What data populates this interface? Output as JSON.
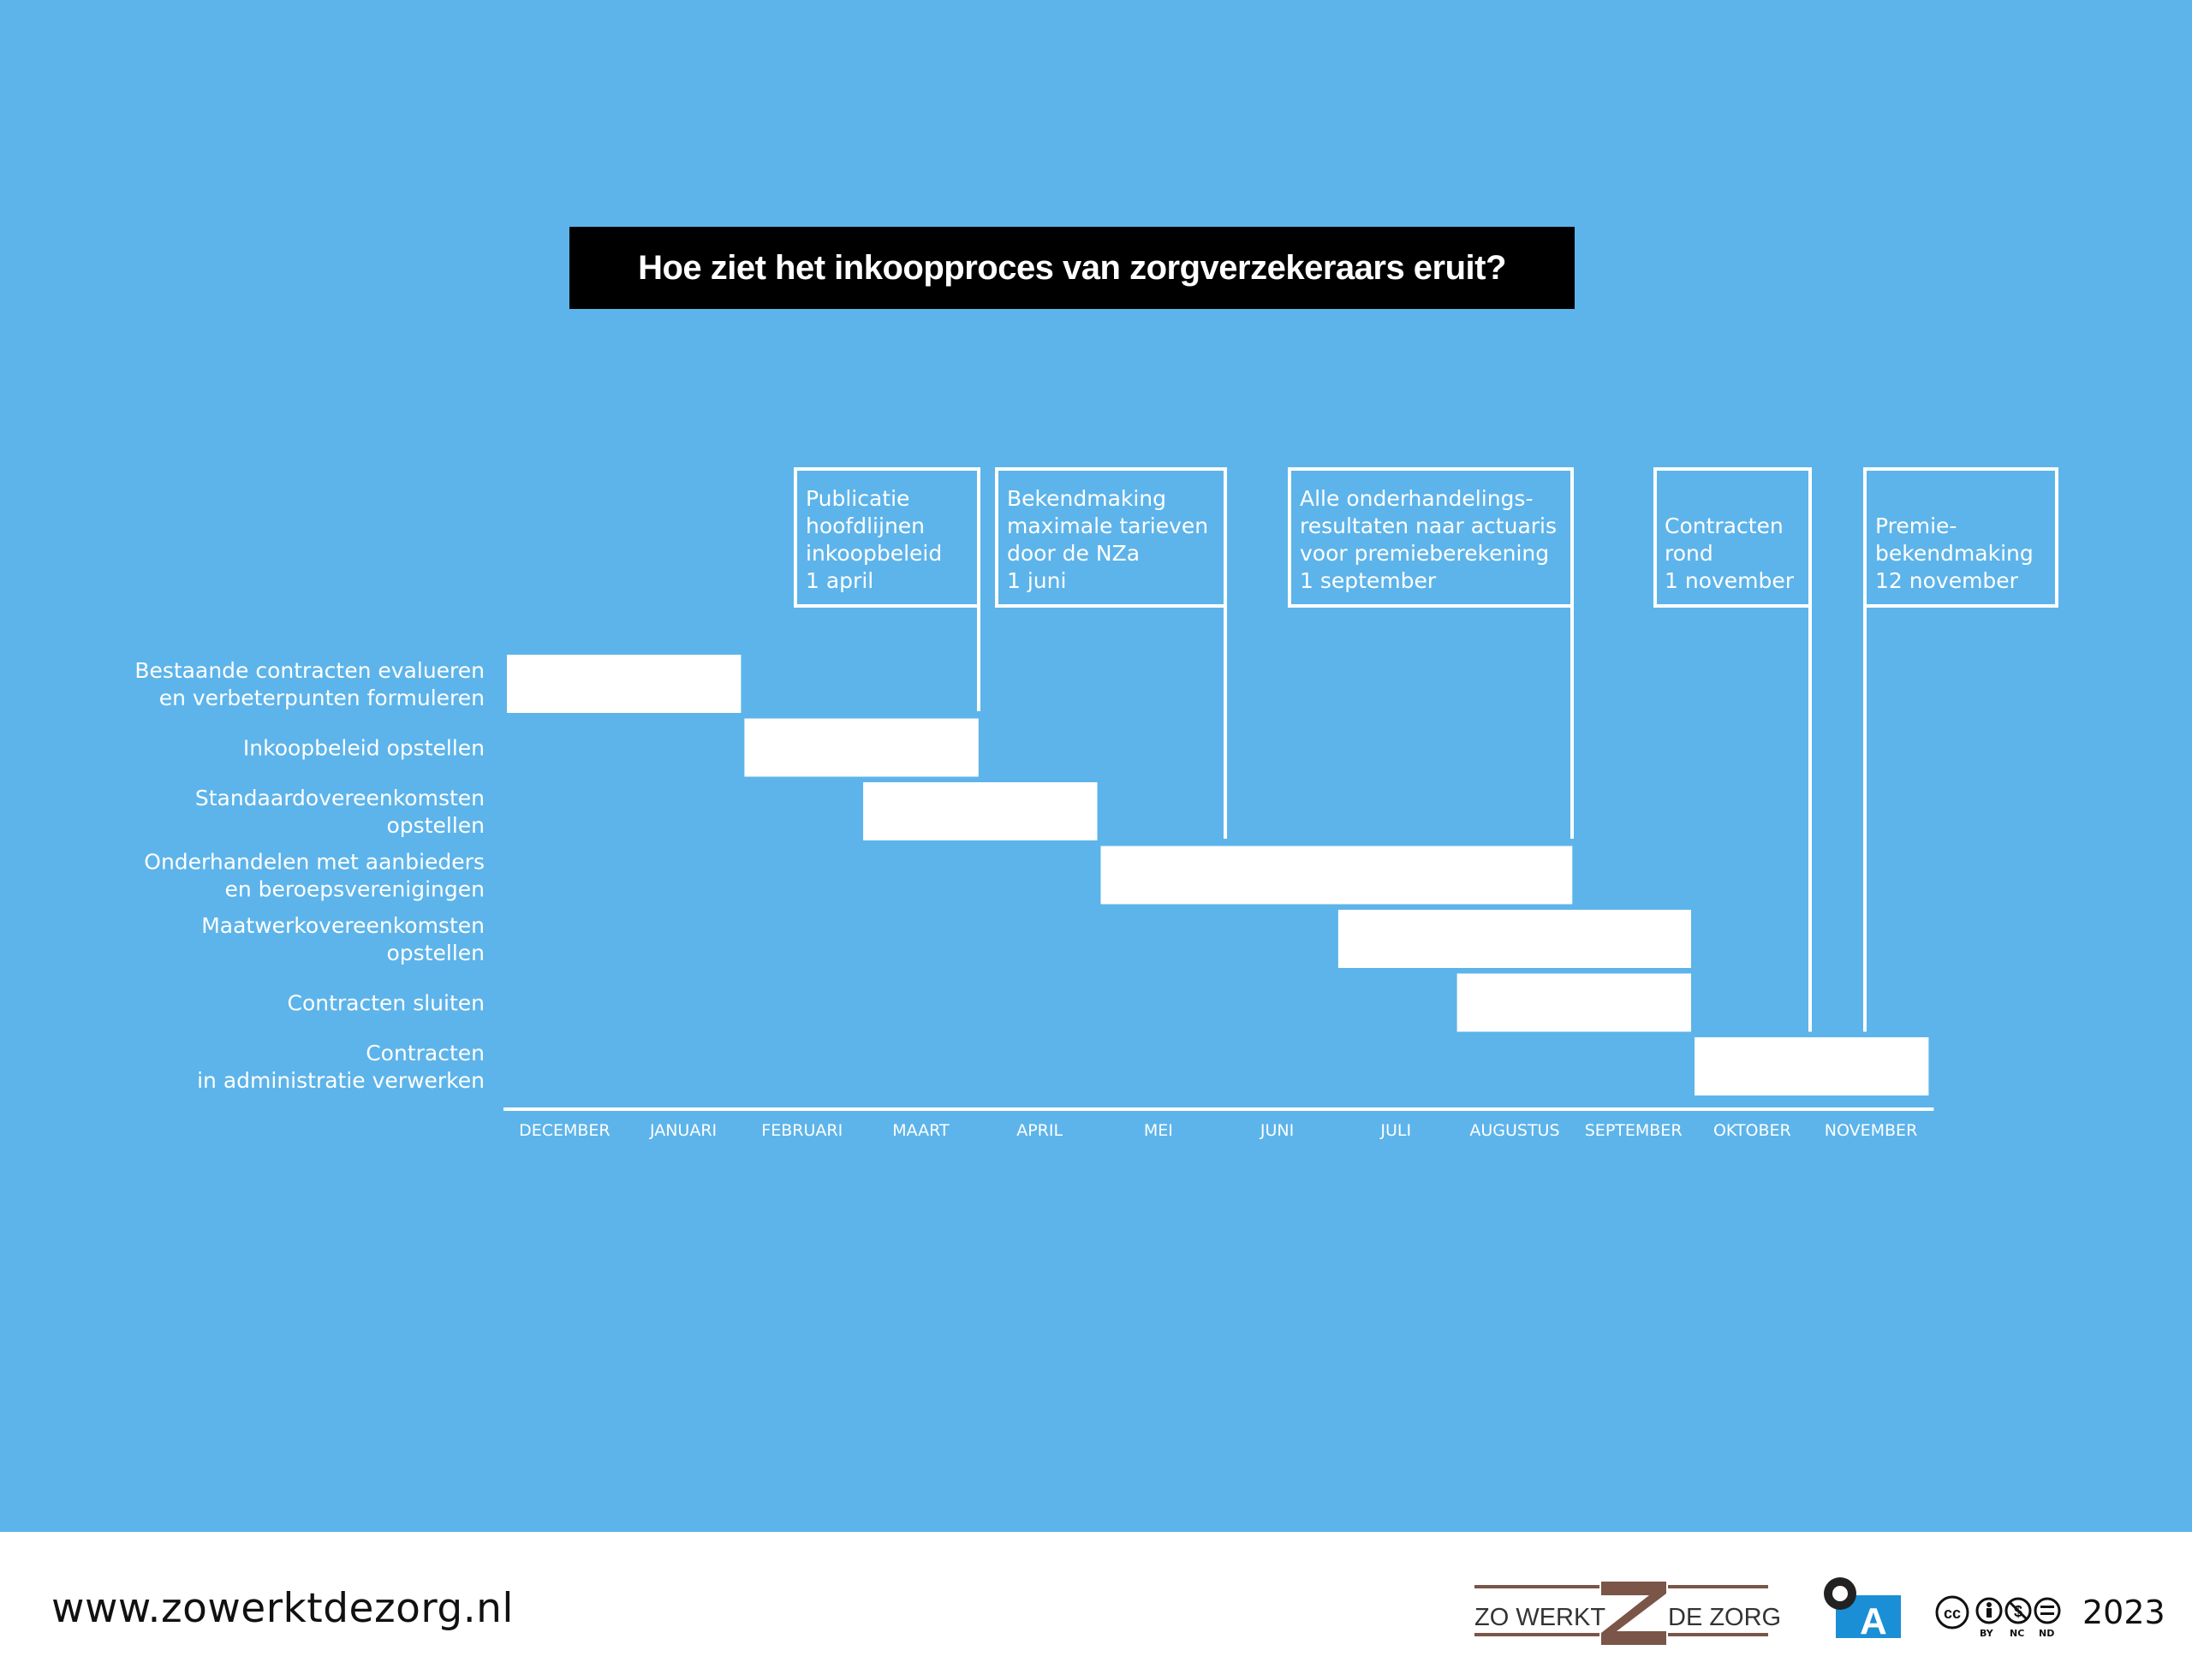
{
  "chart_data": {
    "type": "gantt",
    "title": "Hoe ziet het inkoopproces van zorgverzekeraars eruit?",
    "months": [
      "DECEMBER",
      "JANUARI",
      "FEBRUARI",
      "MAART",
      "APRIL",
      "MEI",
      "JUNI",
      "JULI",
      "AUGUSTUS",
      "SEPTEMBER",
      "OKTOBER",
      "NOVEMBER"
    ],
    "tasks": [
      {
        "label": [
          "Bestaande contracten evalueren",
          "en verbeterpunten formuleren"
        ],
        "start": 0,
        "end": 2
      },
      {
        "label": [
          "Inkoopbeleid opstellen"
        ],
        "start": 2,
        "end": 4
      },
      {
        "label": [
          "Standaardovereenkomsten",
          "opstellen"
        ],
        "start": 3,
        "end": 5
      },
      {
        "label": [
          "Onderhandelen met aanbieders",
          "en beroepsverenigingen"
        ],
        "start": 5,
        "end": 9
      },
      {
        "label": [
          "Maatwerkovereenkomsten",
          "opstellen"
        ],
        "start": 7,
        "end": 10
      },
      {
        "label": [
          "Contracten sluiten"
        ],
        "start": 8,
        "end": 10
      },
      {
        "label": [
          "Contracten",
          "in administratie verwerken"
        ],
        "start": 10,
        "end": 12
      }
    ],
    "milestones": [
      {
        "lines": [
          "Publicatie",
          "hoofdlijnen",
          "inkoopbeleid",
          "1 april"
        ],
        "date": 4,
        "stem_to_row": 0
      },
      {
        "lines": [
          "Bekendmaking",
          "maximale tarieven",
          "door de NZa",
          "1 juni"
        ],
        "date": 6,
        "stem_to_row": 2
      },
      {
        "lines": [
          "Alle onderhandelings-",
          "resultaten naar actuaris",
          "voor premieberekening",
          "1 september"
        ],
        "date": 9,
        "stem_to_row": 2
      },
      {
        "lines": [
          "Contracten",
          "rond",
          "1 november"
        ],
        "date": 11,
        "stem_to_row": 5
      },
      {
        "lines": [
          "Premie-",
          "bekendmaking",
          "12 november"
        ],
        "date": 11.45,
        "stem_to_row": 5
      }
    ],
    "colors": {
      "background": "#5db4ea",
      "bars": "#ffffff",
      "title_bg": "#000000"
    }
  },
  "footer": {
    "url": "www.zowerktdezorg.nl",
    "logo_left": "ZO WERKT",
    "logo_right": "DE ZORG",
    "oa_letter": "A",
    "cc_labels": [
      "BY",
      "NC",
      "ND"
    ],
    "year": "2023"
  }
}
